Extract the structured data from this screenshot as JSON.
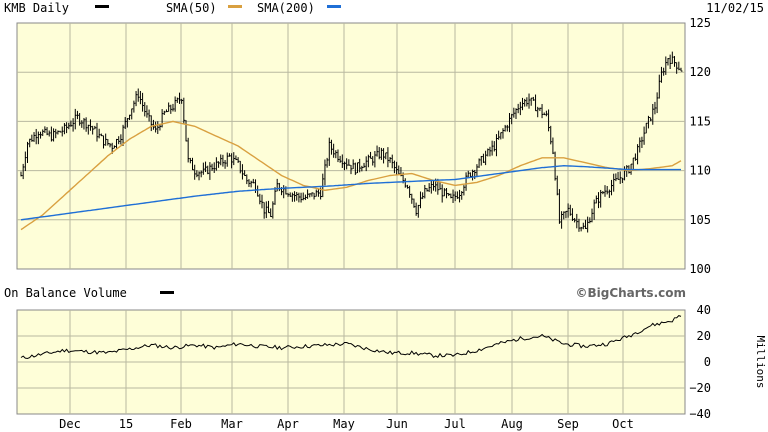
{
  "header": {
    "symbol_label": "KMB Daily",
    "sma50_label": "SMA(50)",
    "sma200_label": "SMA(200)",
    "date": "11/02/15"
  },
  "volume_header": {
    "label": "On Balance Volume",
    "brand": "©BigCharts.com"
  },
  "colors": {
    "plot_bg": "#fefed8",
    "grid": "#b8b8a0",
    "price": "#000000",
    "sma50": "#d9a040",
    "sma200": "#1f6fd6",
    "obv": "#000000"
  },
  "chart_data": [
    {
      "type": "ohlc",
      "title": "KMB Daily",
      "x_ticks": [
        "Dec",
        "15",
        "Feb",
        "Mar",
        "Apr",
        "May",
        "Jun",
        "Jul",
        "Aug",
        "Sep",
        "Oct"
      ],
      "y_ticks": [
        "125",
        "120",
        "115",
        "110",
        "105",
        "100"
      ],
      "ylim": [
        100,
        125
      ],
      "grid": true,
      "series": [
        {
          "name": "KMB Daily",
          "points": [
            [
              0,
              109.5
            ],
            [
              3,
              112.8
            ],
            [
              8,
              114.0
            ],
            [
              14,
              113.5
            ],
            [
              20,
              114.2
            ],
            [
              26,
              115.4
            ],
            [
              32,
              114.5
            ],
            [
              38,
              113.0
            ],
            [
              42,
              112.5
            ],
            [
              46,
              113.6
            ],
            [
              50,
              116.0
            ],
            [
              54,
              117.8
            ],
            [
              58,
              115.5
            ],
            [
              62,
              114.0
            ],
            [
              66,
              115.8
            ],
            [
              70,
              116.5
            ],
            [
              74,
              117.5
            ],
            [
              77,
              111.0
            ],
            [
              80,
              110.0
            ],
            [
              84,
              109.8
            ],
            [
              88,
              110.4
            ],
            [
              92,
              110.8
            ],
            [
              96,
              111.4
            ],
            [
              100,
              110.6
            ],
            [
              104,
              109.0
            ],
            [
              108,
              108.5
            ],
            [
              112,
              106.0
            ],
            [
              115,
              105.5
            ],
            [
              118,
              108.5
            ],
            [
              122,
              108.0
            ],
            [
              126,
              107.5
            ],
            [
              130,
              107.2
            ],
            [
              134,
              107.5
            ],
            [
              138,
              107.8
            ],
            [
              142,
              112.5
            ],
            [
              146,
              111.5
            ],
            [
              150,
              110.8
            ],
            [
              154,
              110.2
            ],
            [
              158,
              110.8
            ],
            [
              162,
              111.2
            ],
            [
              166,
              111.8
            ],
            [
              170,
              111.0
            ],
            [
              174,
              109.5
            ],
            [
              178,
              108.5
            ],
            [
              182,
              106.0
            ],
            [
              186,
              107.8
            ],
            [
              190,
              108.5
            ],
            [
              194,
              107.8
            ],
            [
              198,
              107.0
            ],
            [
              202,
              107.8
            ],
            [
              206,
              109.5
            ],
            [
              210,
              110.5
            ],
            [
              214,
              111.5
            ],
            [
              218,
              112.5
            ],
            [
              222,
              114.0
            ],
            [
              226,
              115.5
            ],
            [
              230,
              116.8
            ],
            [
              234,
              117.2
            ],
            [
              238,
              116.3
            ],
            [
              242,
              115.5
            ],
            [
              245,
              112.0
            ],
            [
              248,
              104.8
            ],
            [
              252,
              106.0
            ],
            [
              256,
              104.8
            ],
            [
              260,
              104.0
            ],
            [
              264,
              106.5
            ],
            [
              268,
              107.8
            ],
            [
              272,
              108.5
            ],
            [
              276,
              109.3
            ],
            [
              280,
              110.2
            ],
            [
              284,
              112.0
            ],
            [
              288,
              114.5
            ],
            [
              292,
              116.5
            ],
            [
              295,
              119.8
            ],
            [
              298,
              121.5
            ],
            [
              301,
              121.0
            ],
            [
              304,
              120.3
            ]
          ]
        },
        {
          "name": "SMA(50)",
          "points": [
            [
              0,
              104.0
            ],
            [
              10,
              105.5
            ],
            [
              20,
              107.5
            ],
            [
              30,
              109.5
            ],
            [
              40,
              111.5
            ],
            [
              50,
              113.2
            ],
            [
              60,
              114.5
            ],
            [
              70,
              115.0
            ],
            [
              80,
              114.5
            ],
            [
              90,
              113.5
            ],
            [
              100,
              112.5
            ],
            [
              110,
              111.0
            ],
            [
              120,
              109.5
            ],
            [
              130,
              108.5
            ],
            [
              140,
              108.0
            ],
            [
              150,
              108.3
            ],
            [
              160,
              109.0
            ],
            [
              170,
              109.5
            ],
            [
              180,
              109.7
            ],
            [
              190,
              109.0
            ],
            [
              200,
              108.5
            ],
            [
              210,
              108.8
            ],
            [
              220,
              109.5
            ],
            [
              230,
              110.5
            ],
            [
              240,
              111.3
            ],
            [
              250,
              111.3
            ],
            [
              260,
              110.8
            ],
            [
              270,
              110.3
            ],
            [
              280,
              110.0
            ],
            [
              290,
              110.2
            ],
            [
              300,
              110.5
            ],
            [
              304,
              111.0
            ]
          ]
        },
        {
          "name": "SMA(200)",
          "points": [
            [
              0,
              105.0
            ],
            [
              20,
              105.6
            ],
            [
              40,
              106.2
            ],
            [
              60,
              106.8
            ],
            [
              80,
              107.4
            ],
            [
              100,
              107.9
            ],
            [
              120,
              108.2
            ],
            [
              140,
              108.4
            ],
            [
              160,
              108.7
            ],
            [
              180,
              108.9
            ],
            [
              200,
              109.1
            ],
            [
              220,
              109.7
            ],
            [
              240,
              110.3
            ],
            [
              250,
              110.5
            ],
            [
              260,
              110.4
            ],
            [
              280,
              110.1
            ],
            [
              300,
              110.1
            ],
            [
              304,
              110.1
            ]
          ]
        }
      ]
    },
    {
      "type": "line",
      "title": "On Balance Volume",
      "x_ticks": [
        "Dec",
        "15",
        "Feb",
        "Mar",
        "Apr",
        "May",
        "Jun",
        "Jul",
        "Aug",
        "Sep",
        "Oct"
      ],
      "y_ticks": [
        "40",
        "20",
        "0",
        "−20",
        "−40"
      ],
      "ylabel": "Millions",
      "ylim": [
        -40,
        40
      ],
      "grid": true,
      "series": [
        {
          "name": "On Balance Volume",
          "points": [
            [
              0,
              3
            ],
            [
              10,
              6
            ],
            [
              20,
              9
            ],
            [
              30,
              8
            ],
            [
              40,
              7
            ],
            [
              50,
              10
            ],
            [
              60,
              13
            ],
            [
              70,
              11
            ],
            [
              80,
              13
            ],
            [
              90,
              11
            ],
            [
              100,
              14
            ],
            [
              110,
              12
            ],
            [
              120,
              11
            ],
            [
              130,
              12
            ],
            [
              140,
              13
            ],
            [
              150,
              14
            ],
            [
              160,
              10
            ],
            [
              170,
              7
            ],
            [
              180,
              7
            ],
            [
              190,
              5
            ],
            [
              200,
              5
            ],
            [
              210,
              9
            ],
            [
              220,
              14
            ],
            [
              230,
              18
            ],
            [
              240,
              20
            ],
            [
              250,
              14
            ],
            [
              260,
              12
            ],
            [
              270,
              14
            ],
            [
              280,
              20
            ],
            [
              290,
              28
            ],
            [
              300,
              32
            ],
            [
              304,
              36
            ]
          ]
        }
      ]
    }
  ]
}
